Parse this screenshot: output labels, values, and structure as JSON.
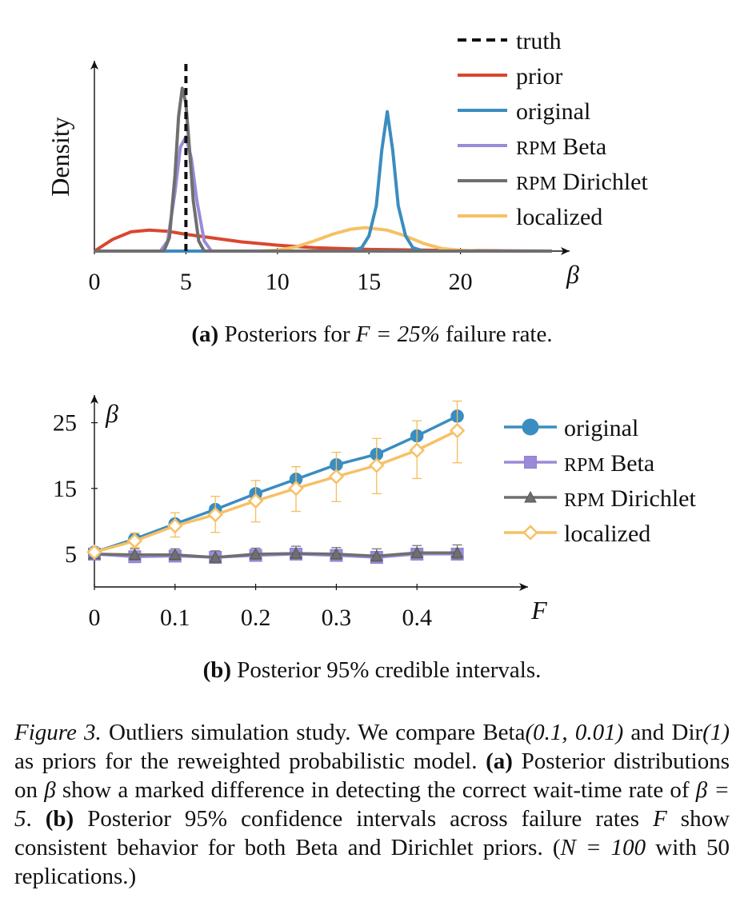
{
  "colors": {
    "truth": "#111111",
    "prior": "#d9472f",
    "original": "#3a8dc0",
    "rpm_beta": "#9b8ad8",
    "rpm_dirichlet": "#6f6f6f",
    "localized": "#f7c065"
  },
  "chart_data": [
    {
      "type": "line",
      "panel": "a",
      "ylabel": "Density",
      "xlabel": "β",
      "xlim": [
        0,
        25
      ],
      "x_ticks": [
        0,
        5,
        10,
        15,
        20
      ],
      "y_ticks": [],
      "grid": false,
      "legend_position": "top-right",
      "series": [
        {
          "name": "truth",
          "style": "dashed",
          "color_key": "truth",
          "x": [
            5,
            5
          ],
          "y": [
            0,
            1.2
          ]
        },
        {
          "name": "prior",
          "style": "solid",
          "color_key": "prior",
          "x": [
            0,
            1,
            2,
            3,
            4,
            5,
            6,
            8,
            10,
            12,
            15,
            20,
            25
          ],
          "y": [
            0.0,
            0.07,
            0.115,
            0.125,
            0.118,
            0.1,
            0.085,
            0.055,
            0.035,
            0.02,
            0.01,
            0.003,
            0.0
          ]
        },
        {
          "name": "original",
          "style": "solid",
          "color_key": "original",
          "x": [
            0,
            14,
            14.6,
            15,
            15.4,
            15.7,
            16,
            16.3,
            16.6,
            17,
            17.4,
            18,
            25
          ],
          "y": [
            0.0,
            0.0,
            0.02,
            0.09,
            0.27,
            0.6,
            0.83,
            0.6,
            0.27,
            0.09,
            0.02,
            0.0,
            0.0
          ]
        },
        {
          "name": "RPM Beta",
          "style": "solid",
          "color_key": "rpm_beta",
          "x": [
            0,
            3.6,
            4.0,
            4.4,
            4.7,
            5.0,
            5.3,
            5.6,
            6.0,
            6.4,
            25
          ],
          "y": [
            0.0,
            0.0,
            0.06,
            0.35,
            0.62,
            0.68,
            0.55,
            0.3,
            0.06,
            0.0,
            0.0
          ]
        },
        {
          "name": "RPM Dirichlet",
          "style": "solid",
          "color_key": "rpm_dirichlet",
          "x": [
            0,
            3.8,
            4.1,
            4.4,
            4.6,
            4.8,
            5.0,
            5.2,
            5.4,
            5.7,
            6.0,
            25
          ],
          "y": [
            0.0,
            0.0,
            0.08,
            0.45,
            0.8,
            0.97,
            0.88,
            0.6,
            0.3,
            0.06,
            0.0,
            0.0
          ]
        },
        {
          "name": "localized",
          "style": "solid",
          "color_key": "localized",
          "x": [
            0,
            9,
            10,
            11,
            12,
            13,
            14,
            14.8,
            16,
            17,
            18,
            19,
            20,
            21,
            25
          ],
          "y": [
            0.0,
            0.0,
            0.005,
            0.025,
            0.06,
            0.1,
            0.13,
            0.14,
            0.125,
            0.09,
            0.045,
            0.015,
            0.005,
            0.0,
            0.0
          ]
        }
      ],
      "caption": {
        "label": "(a)",
        "text_before": " Posteriors for ",
        "math": "F = 25%",
        "text_after": " failure rate."
      }
    },
    {
      "type": "line",
      "panel": "b",
      "ylabel": "β",
      "xlabel": "F",
      "xlim": [
        0,
        0.5
      ],
      "ylim": [
        0,
        28
      ],
      "x_ticks": [
        0,
        0.1,
        0.2,
        0.3,
        0.4
      ],
      "x_tick_labels": [
        "0",
        "0.1",
        "0.2",
        "0.3",
        "0.4"
      ],
      "y_ticks": [
        5,
        15,
        25
      ],
      "grid": false,
      "legend_position": "right",
      "x": [
        0,
        0.05,
        0.1,
        0.15,
        0.2,
        0.25,
        0.3,
        0.35,
        0.4,
        0.45
      ],
      "series": [
        {
          "name": "original",
          "marker": "circle",
          "color_key": "original",
          "y": [
            5.3,
            7.3,
            9.6,
            11.8,
            14.2,
            16.4,
            18.6,
            20.2,
            23.0,
            26.0
          ]
        },
        {
          "name": "RPM Beta",
          "marker": "square",
          "color_key": "rpm_beta",
          "y": [
            5.0,
            4.6,
            4.7,
            4.5,
            4.8,
            5.0,
            4.8,
            4.5,
            5.0,
            5.0
          ]
        },
        {
          "name": "RPM Dirichlet",
          "marker": "triangle",
          "color_key": "rpm_dirichlet",
          "y": [
            5.0,
            4.9,
            4.9,
            4.5,
            5.0,
            5.1,
            5.0,
            4.7,
            5.2,
            5.2
          ],
          "err_low": [
            4.4,
            4.1,
            4.1,
            3.7,
            4.2,
            4.3,
            4.2,
            3.9,
            4.4,
            4.3
          ],
          "err_high": [
            5.7,
            5.8,
            5.8,
            5.5,
            5.9,
            6.2,
            6.0,
            5.8,
            6.3,
            6.4
          ]
        },
        {
          "name": "localized",
          "marker": "diamond",
          "color_key": "localized",
          "y": [
            5.3,
            7.0,
            9.3,
            11.0,
            13.1,
            15.0,
            16.8,
            18.5,
            20.8,
            23.8
          ],
          "err_low": [
            4.8,
            6.0,
            7.6,
            8.3,
            9.9,
            11.5,
            13.0,
            14.2,
            16.5,
            18.9
          ],
          "err_high": [
            5.9,
            8.2,
            11.3,
            13.8,
            16.2,
            18.3,
            20.5,
            22.6,
            25.3,
            28.3
          ]
        }
      ],
      "caption": {
        "label": "(b)",
        "text": " Posterior 95% credible intervals."
      }
    }
  ],
  "figure_caption": {
    "label": "Figure 3.",
    "parts": [
      {
        "t": "text",
        "v": " Outliers simulation study. We compare Beta"
      },
      {
        "t": "math",
        "v": "(0.1, 0.01)"
      },
      {
        "t": "text",
        "v": " and Dir"
      },
      {
        "t": "math",
        "v": "(1)"
      },
      {
        "t": "text",
        "v": " as priors for the reweighted probabilistic model. "
      },
      {
        "t": "bold",
        "v": "(a)"
      },
      {
        "t": "text",
        "v": " Posterior distributions on "
      },
      {
        "t": "math",
        "v": "β"
      },
      {
        "t": "text",
        "v": " show a marked difference in detecting the correct wait-time rate of "
      },
      {
        "t": "math",
        "v": "β = 5"
      },
      {
        "t": "text",
        "v": ". "
      },
      {
        "t": "bold",
        "v": "(b)"
      },
      {
        "t": "text",
        "v": " Posterior 95% confidence intervals across failure rates "
      },
      {
        "t": "math",
        "v": "F"
      },
      {
        "t": "text",
        "v": " show consistent behavior for both Beta and Dirichlet priors. ("
      },
      {
        "t": "math",
        "v": "N = 100"
      },
      {
        "t": "text",
        "v": " with 50 replications.)"
      }
    ]
  }
}
